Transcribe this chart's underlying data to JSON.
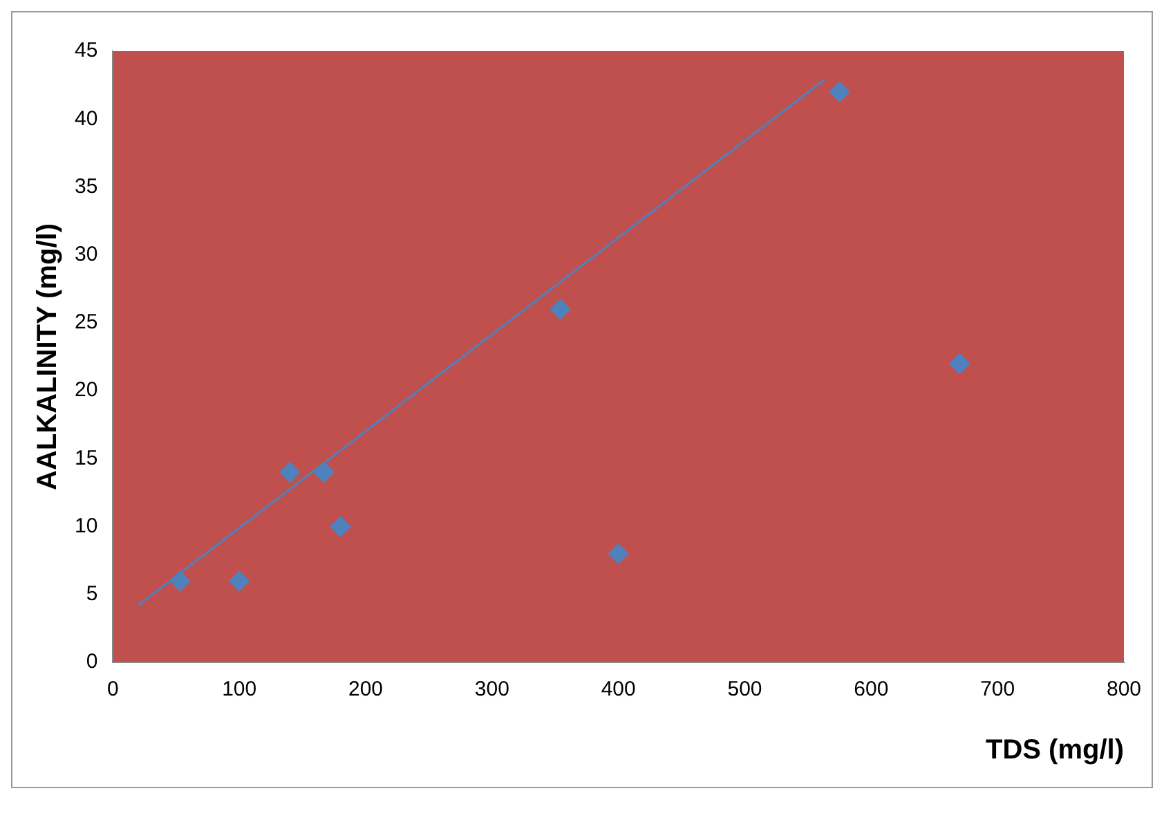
{
  "chart_data": {
    "type": "scatter",
    "xlabel": "TDS (mg/l)",
    "ylabel": "AALKALINITY (mg/l)",
    "legend": false,
    "grid": false,
    "xlim": [
      0,
      800
    ],
    "xticks": [
      0,
      100,
      200,
      300,
      400,
      500,
      600,
      700,
      800
    ],
    "ylim": [
      0,
      45
    ],
    "yticks": [
      0,
      5,
      10,
      15,
      20,
      25,
      30,
      35,
      40,
      45
    ],
    "series": [
      {
        "marker": "diamond",
        "color": "#4f81bd",
        "x": [
          53,
          100,
          140,
          167,
          180,
          354,
          400,
          575,
          670
        ],
        "values": [
          6,
          6,
          14,
          14,
          10,
          26,
          8,
          42,
          22
        ]
      },
      {
        "type": "line",
        "marker": "none",
        "color": "#4f81bd",
        "x": [
          20,
          563
        ],
        "values": [
          4.2,
          42.9
        ]
      }
    ]
  }
}
